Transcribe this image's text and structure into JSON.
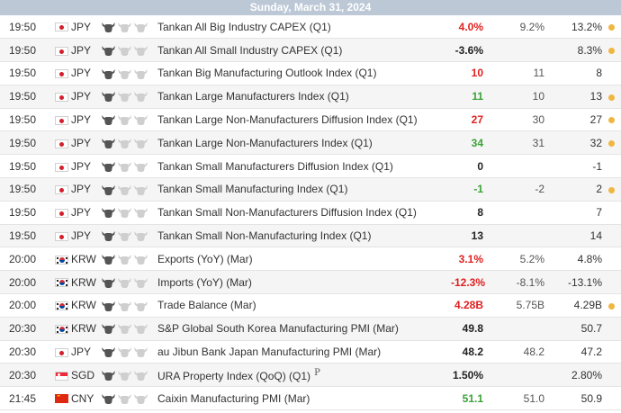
{
  "header": {
    "date": "Sunday, March 31, 2024"
  },
  "colors": {
    "header_bg": "#bcc8d6",
    "red": "#e02020",
    "green": "#3aa338",
    "bull_active": "#555555",
    "bull_inactive": "#cfcfcf",
    "dot": "#f0b642"
  },
  "rows": [
    {
      "time": "19:50",
      "flag": "jp",
      "currency": "JPY",
      "importance": 1,
      "event": "Tankan All Big Industry CAPEX (Q1)",
      "prelim": "",
      "actual": "4.0%",
      "actual_color": "red",
      "forecast": "9.2%",
      "previous": "13.2%",
      "previous_color": "red",
      "dot": true
    },
    {
      "time": "19:50",
      "flag": "jp",
      "currency": "JPY",
      "importance": 1,
      "event": "Tankan All Small Industry CAPEX (Q1)",
      "prelim": "",
      "actual": "-3.6%",
      "actual_color": "black",
      "forecast": "",
      "previous": "8.3%",
      "previous_color": "red",
      "dot": true
    },
    {
      "time": "19:50",
      "flag": "jp",
      "currency": "JPY",
      "importance": 1,
      "event": "Tankan Big Manufacturing Outlook Index (Q1)",
      "prelim": "",
      "actual": "10",
      "actual_color": "red",
      "forecast": "11",
      "previous": "8",
      "previous_color": "black",
      "dot": false
    },
    {
      "time": "19:50",
      "flag": "jp",
      "currency": "JPY",
      "importance": 1,
      "event": "Tankan Large Manufacturers Index (Q1)",
      "prelim": "",
      "actual": "11",
      "actual_color": "green",
      "forecast": "10",
      "previous": "13",
      "previous_color": "green",
      "dot": true
    },
    {
      "time": "19:50",
      "flag": "jp",
      "currency": "JPY",
      "importance": 1,
      "event": "Tankan Large Non-Manufacturers Diffusion Index (Q1)",
      "prelim": "",
      "actual": "27",
      "actual_color": "red",
      "forecast": "30",
      "previous": "27",
      "previous_color": "green",
      "dot": true
    },
    {
      "time": "19:50",
      "flag": "jp",
      "currency": "JPY",
      "importance": 1,
      "event": "Tankan Large Non-Manufacturers Index (Q1)",
      "prelim": "",
      "actual": "34",
      "actual_color": "green",
      "forecast": "31",
      "previous": "32",
      "previous_color": "green",
      "dot": true
    },
    {
      "time": "19:50",
      "flag": "jp",
      "currency": "JPY",
      "importance": 1,
      "event": "Tankan Small Manufacturers Diffusion Index (Q1)",
      "prelim": "",
      "actual": "0",
      "actual_color": "black",
      "forecast": "",
      "previous": "-1",
      "previous_color": "black",
      "dot": false
    },
    {
      "time": "19:50",
      "flag": "jp",
      "currency": "JPY",
      "importance": 1,
      "event": "Tankan Small Manufacturing Index (Q1)",
      "prelim": "",
      "actual": "-1",
      "actual_color": "green",
      "forecast": "-2",
      "previous": "2",
      "previous_color": "green",
      "dot": true
    },
    {
      "time": "19:50",
      "flag": "jp",
      "currency": "JPY",
      "importance": 1,
      "event": "Tankan Small Non-Manufacturers Diffusion Index (Q1)",
      "prelim": "",
      "actual": "8",
      "actual_color": "black",
      "forecast": "",
      "previous": "7",
      "previous_color": "black",
      "dot": false
    },
    {
      "time": "19:50",
      "flag": "jp",
      "currency": "JPY",
      "importance": 1,
      "event": "Tankan Small Non-Manufacturing Index (Q1)",
      "prelim": "",
      "actual": "13",
      "actual_color": "black",
      "forecast": "",
      "previous": "14",
      "previous_color": "black",
      "dot": false
    },
    {
      "time": "20:00",
      "flag": "kr",
      "currency": "KRW",
      "importance": 1,
      "event": "Exports (YoY) (Mar)",
      "prelim": "",
      "actual": "3.1%",
      "actual_color": "red",
      "forecast": "5.2%",
      "previous": "4.8%",
      "previous_color": "black",
      "dot": false
    },
    {
      "time": "20:00",
      "flag": "kr",
      "currency": "KRW",
      "importance": 1,
      "event": "Imports (YoY) (Mar)",
      "prelim": "",
      "actual": "-12.3%",
      "actual_color": "red",
      "forecast": "-8.1%",
      "previous": "-13.1%",
      "previous_color": "black",
      "dot": false
    },
    {
      "time": "20:00",
      "flag": "kr",
      "currency": "KRW",
      "importance": 1,
      "event": "Trade Balance (Mar)",
      "prelim": "",
      "actual": "4.28B",
      "actual_color": "red",
      "forecast": "5.75B",
      "previous": "4.29B",
      "previous_color": "red",
      "dot": true
    },
    {
      "time": "20:30",
      "flag": "kr",
      "currency": "KRW",
      "importance": 1,
      "event": "S&P Global South Korea Manufacturing PMI (Mar)",
      "prelim": "",
      "actual": "49.8",
      "actual_color": "black",
      "forecast": "",
      "previous": "50.7",
      "previous_color": "black",
      "dot": false
    },
    {
      "time": "20:30",
      "flag": "jp",
      "currency": "JPY",
      "importance": 1,
      "event": "au Jibun Bank Japan Manufacturing PMI (Mar)",
      "prelim": "",
      "actual": "48.2",
      "actual_color": "black",
      "forecast": "48.2",
      "previous": "47.2",
      "previous_color": "black",
      "dot": false
    },
    {
      "time": "20:30",
      "flag": "sg",
      "currency": "SGD",
      "importance": 1,
      "event": "URA Property Index (QoQ) (Q1)",
      "prelim": "P",
      "actual": "1.50%",
      "actual_color": "black",
      "forecast": "",
      "previous": "2.80%",
      "previous_color": "black",
      "dot": false
    },
    {
      "time": "21:45",
      "flag": "cn",
      "currency": "CNY",
      "importance": 1,
      "event": "Caixin Manufacturing PMI (Mar)",
      "prelim": "",
      "actual": "51.1",
      "actual_color": "green",
      "forecast": "51.0",
      "previous": "50.9",
      "previous_color": "black",
      "dot": false
    }
  ]
}
